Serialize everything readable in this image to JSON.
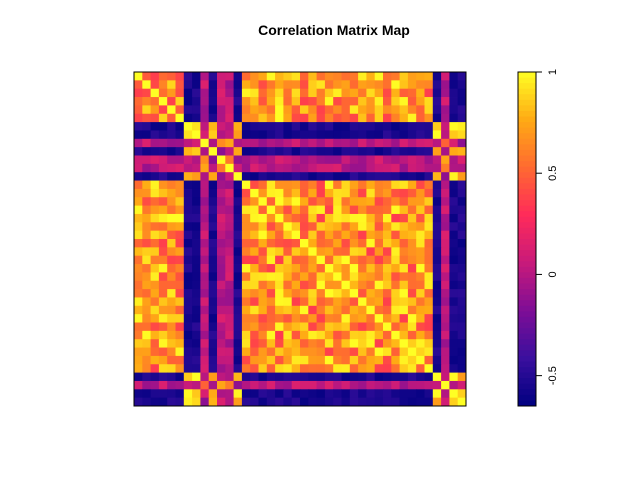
{
  "chart_data": {
    "type": "heatmap",
    "title": "Correlation Matrix Map",
    "xlabel": "",
    "ylabel": "",
    "n": 40,
    "groups": {
      "A": [
        0,
        1,
        2,
        3,
        4,
        5,
        13,
        14,
        15,
        16,
        17,
        18,
        19,
        20,
        21,
        22,
        23,
        24,
        25,
        26,
        27,
        28,
        29,
        30,
        31,
        32,
        33,
        34,
        35
      ],
      "B": [
        6,
        7,
        9,
        12,
        36,
        38,
        39
      ],
      "C": [
        8,
        10,
        11,
        37
      ]
    },
    "colorbar": {
      "range": [
        -0.65,
        1.0
      ],
      "ticks": [
        -0.5,
        0,
        0.5,
        1
      ],
      "tick_labels": [
        "-0.5",
        "0",
        "0.5",
        "1"
      ],
      "colors": [
        "#000080",
        "#3a0f9e",
        "#7e0d96",
        "#c81a7a",
        "#ff2a5a",
        "#ff6a30",
        "#ffaa14",
        "#ffff24"
      ]
    },
    "grid": false,
    "legend": "right"
  }
}
